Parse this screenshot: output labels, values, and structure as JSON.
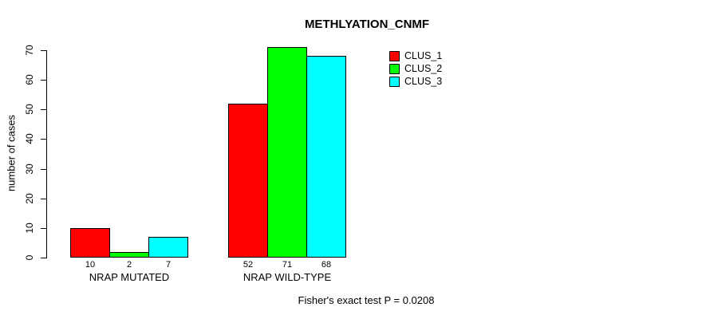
{
  "chart_data": {
    "type": "bar",
    "title": "METHLYATION_CNMF",
    "xlabel": "",
    "ylabel": "number of cases",
    "categories": [
      "NRAP MUTATED",
      "NRAP WILD-TYPE"
    ],
    "series": [
      {
        "name": "CLUS_1",
        "color": "#ff0000",
        "values": [
          10,
          52
        ]
      },
      {
        "name": "CLUS_2",
        "color": "#00ff00",
        "values": [
          2,
          71
        ]
      },
      {
        "name": "CLUS_3",
        "color": "#00ffff",
        "values": [
          7,
          68
        ]
      }
    ],
    "bar_value_labels": [
      [
        10,
        2,
        7
      ],
      [
        52,
        71,
        68
      ]
    ],
    "ylim": [
      0,
      70
    ],
    "yticks": [
      0,
      10,
      20,
      30,
      40,
      50,
      60,
      70
    ],
    "grid": false,
    "legend_position": "top-right",
    "bar_border_color": "#000000",
    "annotation": "Fisher's exact test P = 0.0208"
  }
}
